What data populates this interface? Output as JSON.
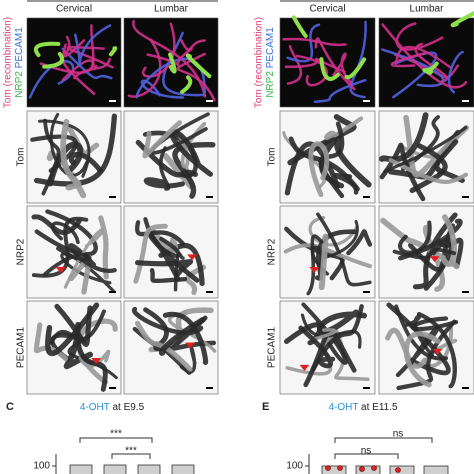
{
  "left_panel": {
    "columns": [
      "Cervical",
      "Lumbar"
    ],
    "side_label": {
      "line1": "Tom (recombination)",
      "nrp2": "NRP2",
      "pecam1": "PECAM1"
    },
    "rows": [
      "Tom",
      "NRP2",
      "PECAM1"
    ]
  },
  "right_panel": {
    "columns": [
      "Cervical",
      "Lumbar"
    ],
    "side_label": {
      "line1": "Tom (recombination)",
      "nrp2": "NRP2",
      "pecam1": "PECAM1"
    },
    "rows": [
      "Tom",
      "NRP2",
      "PECAM1"
    ]
  },
  "panel_c": {
    "letter": "C",
    "drug": "4-OHT",
    "stage": "at E9.5",
    "significance": [
      "***",
      "***"
    ],
    "y_tick": "100"
  },
  "panel_e": {
    "letter": "E",
    "drug": "4-OHT",
    "stage": "at E11.5",
    "significance": [
      "ns",
      "ns"
    ],
    "y_tick": "100"
  }
}
